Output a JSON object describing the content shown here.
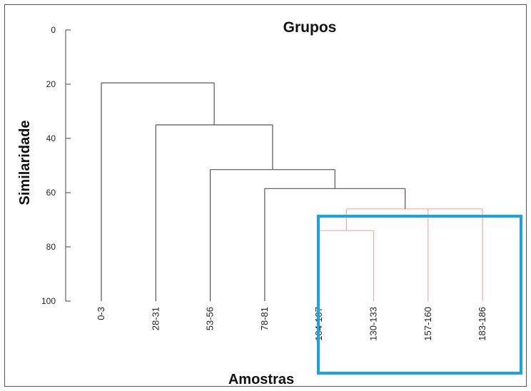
{
  "chart_data": {
    "type": "dendrogram",
    "title": "Grupos",
    "xlabel": "Amostras",
    "ylabel": "Similaridade",
    "ylim": [
      0,
      100
    ],
    "yticks": [
      0,
      20,
      40,
      60,
      80,
      100
    ],
    "leaves": [
      "0-3",
      "28-31",
      "53-56",
      "78-81",
      "104-107",
      "130-133",
      "157-160",
      "183-186"
    ],
    "merges": [
      {
        "children": [
          "104-107",
          "130-133"
        ],
        "height": 74,
        "highlighted": true
      },
      {
        "children": [
          "(104-107,130-133)",
          "157-160",
          "183-186"
        ],
        "height": 66,
        "highlighted": true
      },
      {
        "children": [
          "78-81",
          "(104-107..183-186)"
        ],
        "height": 58.5,
        "highlighted": false
      },
      {
        "children": [
          "53-56",
          "(78-81..183-186)"
        ],
        "height": 51.5,
        "highlighted": false
      },
      {
        "children": [
          "28-31",
          "(53-56..183-186)"
        ],
        "height": 35,
        "highlighted": false
      },
      {
        "children": [
          "0-3",
          "(28-31..183-186)"
        ],
        "height": 19.5,
        "highlighted": false
      }
    ],
    "highlight_group": [
      "104-107",
      "130-133",
      "157-160",
      "183-186"
    ],
    "colors": {
      "main_branch": "#555555",
      "highlight_branch": "#f0a8a8",
      "highlight_box": "#1aa3e0"
    },
    "grid": false
  }
}
